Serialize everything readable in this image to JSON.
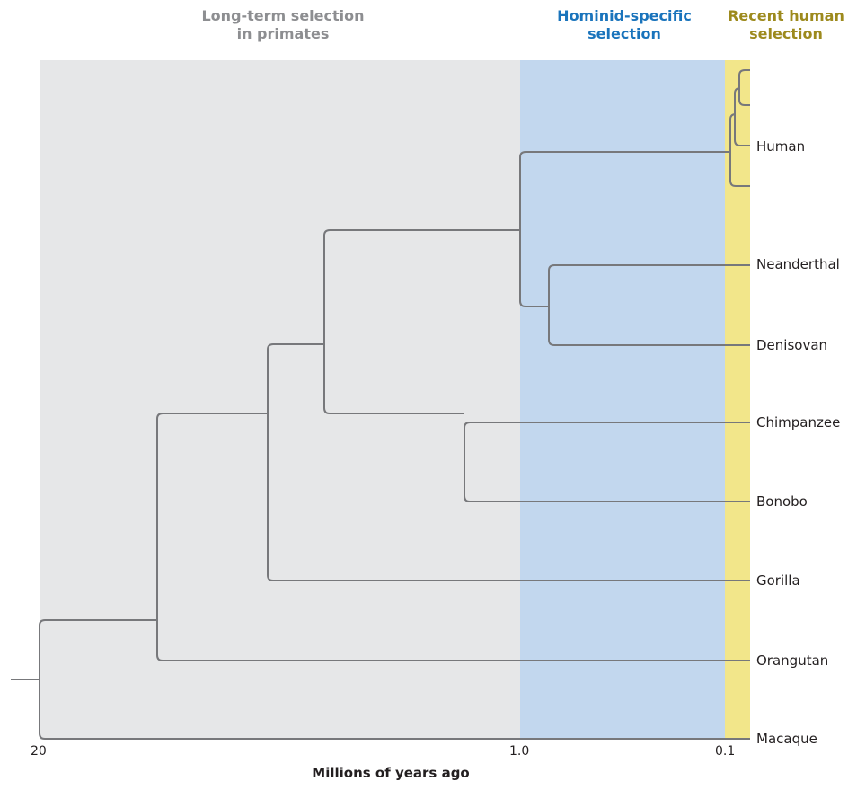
{
  "regions": {
    "long_term": {
      "line1": "Long-term selection",
      "line2": "in primates",
      "color": "#8d8e91",
      "fill": "#e6e7e8"
    },
    "hominid": {
      "line1": "Hominid-specific",
      "line2": "selection",
      "color": "#1a74bc",
      "fill": "#c2d7ee"
    },
    "recent": {
      "line1": "Recent human",
      "line2": "selection",
      "color": "#9d8a1d",
      "fill": "#f2e68a"
    }
  },
  "taxa": {
    "human": "Human",
    "neanderthal": "Neanderthal",
    "denisovan": "Denisovan",
    "chimpanzee": "Chimpanzee",
    "bonobo": "Bonobo",
    "gorilla": "Gorilla",
    "orangutan": "Orangutan",
    "macaque": "Macaque"
  },
  "axis": {
    "title": "Millions of years ago",
    "ticks": {
      "t20": "20",
      "t1": "1.0",
      "t01": "0.1"
    }
  },
  "colors": {
    "branch": "#77787b",
    "text": "#231f20"
  }
}
